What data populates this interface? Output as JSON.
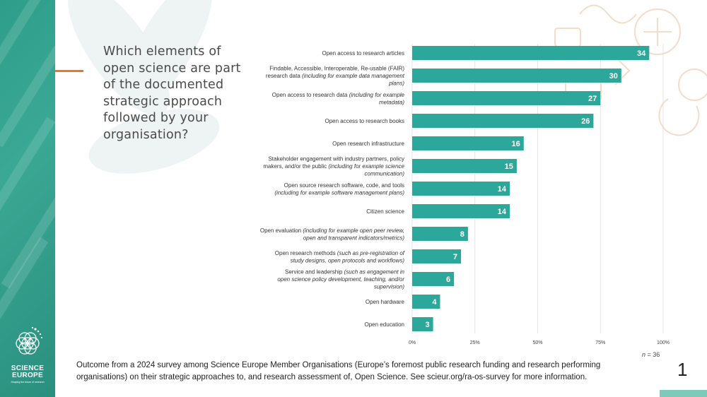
{
  "question": "Which elements of open science are part of the documented strategic approach followed by your organisation?",
  "logo": {
    "line1": "SCIENCE",
    "line2": "EUROPE",
    "tagline": "Shaping the future of research"
  },
  "colors": {
    "bar": "#2ba89a",
    "accent": "#e8762c",
    "sidebar": "#2e9e8a",
    "grid": "#dedede"
  },
  "chart_data": {
    "type": "bar",
    "orientation": "horizontal",
    "categories": [
      [
        "Open access to research articles"
      ],
      [
        "Findable, Accessible, Interoperable, Re-usable (FAIR)",
        "research data |(including for example data management",
        "|plans)"
      ],
      [
        "Open access to research data |(including for example",
        "|metadata)"
      ],
      [
        "Open access to research books"
      ],
      [
        "Open research infrastructure"
      ],
      [
        "Stakeholder engagement with industry partners, policy",
        "makers, and/or the public |(including for example science",
        "|communication)"
      ],
      [
        "Open source research software, code, and tools",
        "|(including for example software management plans)"
      ],
      [
        "Citizen science"
      ],
      [
        "Open evaluation |(including for example open peer review,",
        "|open and transparent indicators/metrics)"
      ],
      [
        "Open research methods |(such as pre-registration of",
        "|study designs, open protocols and workflows)"
      ],
      [
        "Service and leadership |(such as engagement in",
        "|open science policy development, teaching, and/or",
        "|supervision)"
      ],
      [
        "Open hardware"
      ],
      [
        "Open education"
      ]
    ],
    "values": [
      34,
      30,
      27,
      26,
      16,
      15,
      14,
      14,
      8,
      7,
      6,
      4,
      3
    ],
    "n_total": 36,
    "x_axis": {
      "unit": "percent",
      "ticks": [
        "0%",
        "25%",
        "50%",
        "75%",
        "100%"
      ],
      "range": [
        0,
        100
      ]
    },
    "grid": true
  },
  "n_label": {
    "var": "n",
    "text": " = 36"
  },
  "footnote": "Outcome from a 2024 survey among Science Europe Member Organisations (Europe’s foremost public research funding and research performing organisations) on their strategic approaches to, and research assessment of, Open Science. See scieur.org/ra-os-survey for more information.",
  "page_number": "1"
}
